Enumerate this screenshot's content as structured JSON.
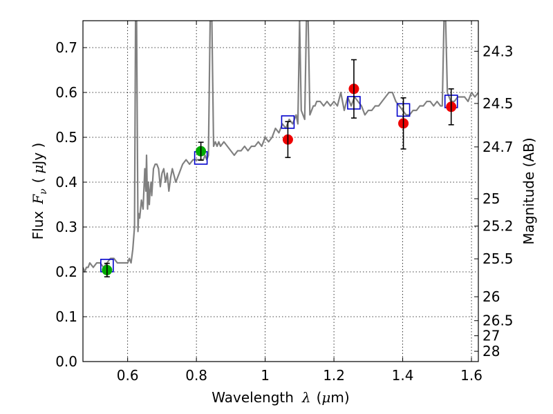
{
  "chart_data": {
    "type": "scatter",
    "xlabel_prefix": "Wavelength",
    "xlabel_symbol": "λ",
    "xlabel_unit_open": "(",
    "xlabel_unit_mu": "μ",
    "xlabel_unit_rest": "m)",
    "ylabel_prefix": "Flux",
    "ylabel_symbol": "F",
    "ylabel_subscript": "ν",
    "ylabel_unit_open": "(",
    "ylabel_unit_mu": "μ",
    "ylabel_unit_rest": "Jy )",
    "y2label": "Magnitude (AB)",
    "xlim": [
      0.47,
      1.62
    ],
    "ylim": [
      0.0,
      0.76
    ],
    "grid": true,
    "x_ticks": [
      0.6,
      0.8,
      1.0,
      1.2,
      1.4,
      1.6
    ],
    "x_tick_labels": [
      "0.6",
      "0.8",
      "1",
      "1.2",
      "1.4",
      "1.6"
    ],
    "y_ticks": [
      0.0,
      0.1,
      0.2,
      0.3,
      0.4,
      0.5,
      0.6,
      0.7
    ],
    "y_tick_labels": [
      "0.0",
      "0.1",
      "0.2",
      "0.3",
      "0.4",
      "0.5",
      "0.6",
      "0.7"
    ],
    "mag_ticks": [
      24.3,
      24.5,
      24.7,
      25,
      25.2,
      25.5,
      26,
      26.5,
      27,
      28
    ],
    "mag_tick_labels": [
      "24.3",
      "24.5",
      "24.7",
      "25",
      "25.2",
      "25.5",
      "26",
      "26.5",
      "27",
      "28"
    ],
    "colors": {
      "spectrum": "#808080",
      "model_box": "#0000cc",
      "obs_green": "#00aa00",
      "obs_red": "#ee0000",
      "errorbar": "#000000",
      "grid": "#000000"
    },
    "series": [
      {
        "name": "model_spectrum",
        "kind": "line",
        "x": [
          0.47,
          0.475,
          0.48,
          0.485,
          0.49,
          0.5,
          0.51,
          0.52,
          0.53,
          0.54,
          0.55,
          0.56,
          0.57,
          0.58,
          0.59,
          0.6,
          0.605,
          0.61,
          0.615,
          0.62,
          0.623,
          0.626,
          0.63,
          0.632,
          0.635,
          0.64,
          0.645,
          0.65,
          0.653,
          0.655,
          0.658,
          0.66,
          0.663,
          0.665,
          0.668,
          0.67,
          0.675,
          0.68,
          0.685,
          0.69,
          0.695,
          0.7,
          0.705,
          0.71,
          0.715,
          0.72,
          0.725,
          0.73,
          0.74,
          0.75,
          0.76,
          0.77,
          0.78,
          0.79,
          0.8,
          0.81,
          0.82,
          0.825,
          0.83,
          0.835,
          0.84,
          0.845,
          0.85,
          0.855,
          0.86,
          0.865,
          0.87,
          0.88,
          0.89,
          0.9,
          0.91,
          0.92,
          0.93,
          0.94,
          0.95,
          0.96,
          0.97,
          0.98,
          0.99,
          1.0,
          1.01,
          1.02,
          1.03,
          1.04,
          1.05,
          1.06,
          1.07,
          1.08,
          1.09,
          1.095,
          1.1,
          1.105,
          1.11,
          1.115,
          1.12,
          1.125,
          1.13,
          1.135,
          1.14,
          1.145,
          1.15,
          1.16,
          1.17,
          1.18,
          1.19,
          1.2,
          1.21,
          1.22,
          1.23,
          1.24,
          1.25,
          1.26,
          1.27,
          1.28,
          1.29,
          1.3,
          1.31,
          1.32,
          1.33,
          1.34,
          1.35,
          1.36,
          1.37,
          1.38,
          1.39,
          1.4,
          1.41,
          1.42,
          1.43,
          1.44,
          1.45,
          1.46,
          1.47,
          1.48,
          1.49,
          1.5,
          1.51,
          1.515,
          1.52,
          1.525,
          1.53,
          1.535,
          1.54,
          1.55,
          1.56,
          1.57,
          1.58,
          1.59,
          1.6,
          1.61,
          1.62
        ],
        "y": [
          0.21,
          0.2,
          0.21,
          0.21,
          0.22,
          0.21,
          0.22,
          0.22,
          0.21,
          0.22,
          0.23,
          0.23,
          0.22,
          0.22,
          0.22,
          0.22,
          0.23,
          0.22,
          0.25,
          0.3,
          0.76,
          0.76,
          0.29,
          0.33,
          0.32,
          0.36,
          0.34,
          0.43,
          0.38,
          0.46,
          0.34,
          0.4,
          0.35,
          0.38,
          0.4,
          0.37,
          0.43,
          0.44,
          0.44,
          0.43,
          0.39,
          0.42,
          0.43,
          0.4,
          0.42,
          0.38,
          0.41,
          0.43,
          0.4,
          0.42,
          0.44,
          0.45,
          0.44,
          0.45,
          0.45,
          0.45,
          0.45,
          0.46,
          0.45,
          0.46,
          0.76,
          0.76,
          0.48,
          0.49,
          0.48,
          0.49,
          0.48,
          0.49,
          0.48,
          0.47,
          0.46,
          0.47,
          0.47,
          0.48,
          0.47,
          0.48,
          0.48,
          0.49,
          0.48,
          0.5,
          0.49,
          0.5,
          0.52,
          0.51,
          0.53,
          0.52,
          0.54,
          0.53,
          0.55,
          0.53,
          0.76,
          0.56,
          0.55,
          0.54,
          0.76,
          0.76,
          0.55,
          0.56,
          0.57,
          0.57,
          0.58,
          0.58,
          0.57,
          0.58,
          0.57,
          0.58,
          0.57,
          0.6,
          0.56,
          0.59,
          0.57,
          0.59,
          0.58,
          0.57,
          0.55,
          0.56,
          0.56,
          0.57,
          0.57,
          0.58,
          0.59,
          0.6,
          0.6,
          0.58,
          0.57,
          0.56,
          0.55,
          0.55,
          0.56,
          0.56,
          0.57,
          0.57,
          0.58,
          0.58,
          0.57,
          0.58,
          0.57,
          0.57,
          0.76,
          0.76,
          0.6,
          0.59,
          0.58,
          0.58,
          0.59,
          0.59,
          0.59,
          0.58,
          0.6,
          0.59,
          0.6
        ]
      },
      {
        "name": "model_photometry",
        "kind": "box",
        "x": [
          0.54,
          0.813,
          1.066,
          1.258,
          1.402,
          1.541
        ],
        "y": [
          0.214,
          0.454,
          0.534,
          0.577,
          0.561,
          0.58
        ]
      },
      {
        "name": "observed_green",
        "kind": "point",
        "x": [
          0.54,
          0.813
        ],
        "y": [
          0.204,
          0.469
        ],
        "err": [
          0.015,
          0.02
        ]
      },
      {
        "name": "observed_red",
        "kind": "point",
        "x": [
          1.066,
          1.258,
          1.402,
          1.541
        ],
        "y": [
          0.495,
          0.608,
          0.531,
          0.568
        ],
        "err": [
          0.04,
          0.065,
          0.057,
          0.04
        ]
      }
    ]
  }
}
